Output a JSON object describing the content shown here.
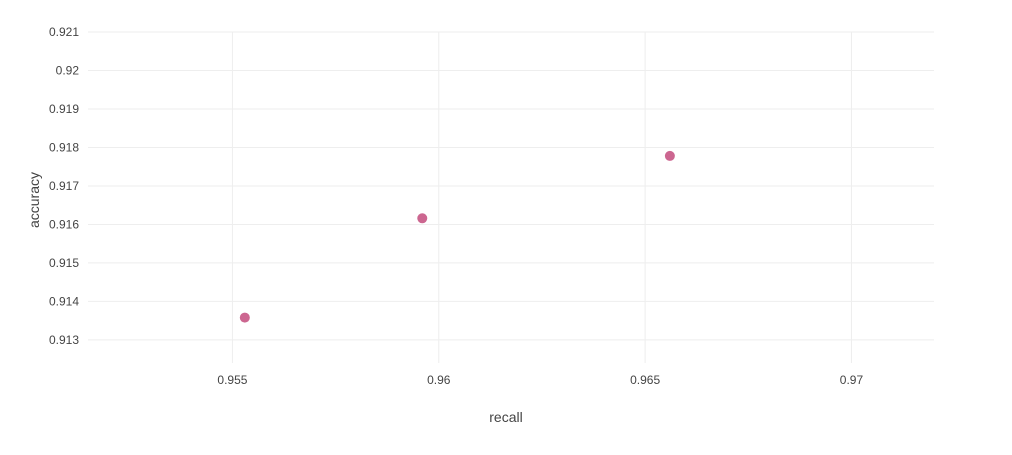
{
  "chart_data": {
    "type": "scatter",
    "title": "",
    "xlabel": "recall",
    "ylabel": "accuracy",
    "xlim": [
      0.9515,
      0.972
    ],
    "ylim": [
      0.9124,
      0.921
    ],
    "x_ticks": [
      0.955,
      0.96,
      0.965,
      0.97
    ],
    "x_tick_labels": [
      "0.955",
      "0.96",
      "0.965",
      "0.97"
    ],
    "y_ticks": [
      0.913,
      0.914,
      0.915,
      0.916,
      0.917,
      0.918,
      0.919,
      0.92,
      0.921
    ],
    "y_tick_labels": [
      "0.913",
      "0.914",
      "0.915",
      "0.916",
      "0.917",
      "0.918",
      "0.919",
      "0.92",
      "0.921"
    ],
    "grid": true,
    "legend": "none",
    "series": [
      {
        "color": "#cc6690",
        "points": [
          {
            "x": 0.9553,
            "y": 0.91358
          },
          {
            "x": 0.9596,
            "y": 0.91616
          },
          {
            "x": 0.9656,
            "y": 0.91778
          }
        ]
      }
    ]
  }
}
